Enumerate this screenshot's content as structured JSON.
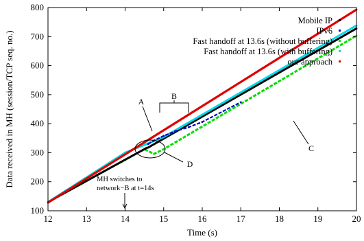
{
  "chart_data": {
    "type": "scatter",
    "xlabel": "Time (s)",
    "ylabel": "Data received in MH (session/TCP seq. no.)",
    "xlim": [
      12,
      20
    ],
    "ylim": [
      100,
      800
    ],
    "xticks": [
      12,
      13,
      14,
      15,
      16,
      17,
      18,
      19,
      20
    ],
    "yticks": [
      100,
      200,
      300,
      400,
      500,
      600,
      700,
      800
    ],
    "grid": false,
    "legend_position": "top-right",
    "series": [
      {
        "name": "Mobile IP",
        "color": "#000000",
        "x": [
          12,
          14.55,
          14.6,
          20
        ],
        "y": [
          130,
          316,
          318,
          728
        ]
      },
      {
        "name": "IPv6",
        "color": "#0000cc",
        "x": [
          14.6,
          14.75,
          15.0,
          15.3,
          15.65,
          16.0,
          17.0
        ],
        "y": [
          330,
          342,
          358,
          374,
          388,
          406,
          474
        ]
      },
      {
        "name": "Fast handoff at 13.6s (without buffering)",
        "color": "#00dd00",
        "x": [
          12,
          14.5,
          14.75,
          15.0,
          20
        ],
        "y": [
          130,
          312,
          296,
          312,
          703
        ]
      },
      {
        "name": "Fast handoff at 13.6s (with buffering)",
        "color": "#00d8e8",
        "x": [
          12,
          14.0,
          15.0,
          20
        ],
        "y": [
          130,
          300,
          354,
          738
        ]
      },
      {
        "name": "our approach",
        "color": "#e00000",
        "x": [
          12,
          20
        ],
        "y": [
          128,
          793
        ]
      }
    ],
    "annotations": [
      {
        "label": "A"
      },
      {
        "label": "B"
      },
      {
        "label": "C"
      },
      {
        "label": "D"
      },
      {
        "line1": "MH switches to",
        "line2": "network−B at t=14s"
      }
    ]
  }
}
